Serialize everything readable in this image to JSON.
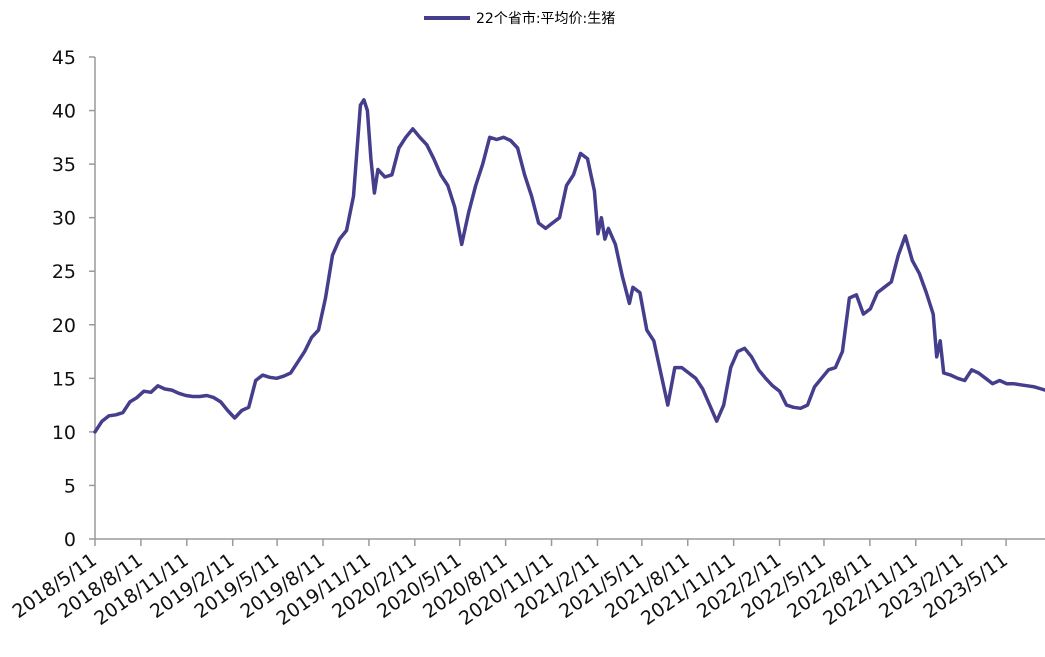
{
  "chart_data": {
    "type": "line",
    "title": "",
    "xlabel": "",
    "ylabel": "",
    "ylim": [
      0,
      45
    ],
    "y_ticks": [
      0,
      5,
      10,
      15,
      20,
      25,
      30,
      35,
      40,
      45
    ],
    "x_tick_labels": [
      "2018/5/11",
      "2018/8/11",
      "2018/11/11",
      "2019/2/11",
      "2019/5/11",
      "2019/8/11",
      "2019/11/11",
      "2020/2/11",
      "2020/5/11",
      "2020/8/11",
      "2020/11/11",
      "2021/2/11",
      "2021/5/11",
      "2021/8/11",
      "2021/11/11",
      "2022/2/11",
      "2022/5/11",
      "2022/8/11",
      "2022/11/11",
      "2023/2/11",
      "2023/5/11"
    ],
    "x_range": [
      "2018/5/11",
      "2023/7/28"
    ],
    "legend": {
      "position": "top-center"
    },
    "grid": false,
    "series": [
      {
        "name": "22个省市:平均价:生猪",
        "color": "#453e8c",
        "points": [
          [
            "2018/5/11",
            10.0
          ],
          [
            "2018/5/25",
            11.0
          ],
          [
            "2018/6/8",
            11.5
          ],
          [
            "2018/6/22",
            11.6
          ],
          [
            "2018/7/6",
            11.8
          ],
          [
            "2018/7/20",
            12.8
          ],
          [
            "2018/8/3",
            13.2
          ],
          [
            "2018/8/17",
            13.8
          ],
          [
            "2018/8/31",
            13.7
          ],
          [
            "2018/9/14",
            14.3
          ],
          [
            "2018/9/28",
            14.0
          ],
          [
            "2018/10/12",
            13.9
          ],
          [
            "2018/10/26",
            13.6
          ],
          [
            "2018/11/9",
            13.4
          ],
          [
            "2018/11/23",
            13.3
          ],
          [
            "2018/12/7",
            13.3
          ],
          [
            "2018/12/21",
            13.4
          ],
          [
            "2019/1/4",
            13.2
          ],
          [
            "2019/1/18",
            12.8
          ],
          [
            "2019/2/1",
            12.0
          ],
          [
            "2019/2/15",
            11.3
          ],
          [
            "2019/3/1",
            12.0
          ],
          [
            "2019/3/15",
            12.3
          ],
          [
            "2019/3/29",
            14.8
          ],
          [
            "2019/4/12",
            15.3
          ],
          [
            "2019/4/26",
            15.1
          ],
          [
            "2019/5/10",
            15.0
          ],
          [
            "2019/5/24",
            15.2
          ],
          [
            "2019/6/7",
            15.5
          ],
          [
            "2019/6/21",
            16.5
          ],
          [
            "2019/7/5",
            17.5
          ],
          [
            "2019/7/19",
            18.8
          ],
          [
            "2019/8/2",
            19.5
          ],
          [
            "2019/8/16",
            22.5
          ],
          [
            "2019/8/30",
            26.5
          ],
          [
            "2019/9/13",
            28.0
          ],
          [
            "2019/9/27",
            28.8
          ],
          [
            "2019/10/11",
            32.0
          ],
          [
            "2019/10/25",
            40.5
          ],
          [
            "2019/11/1",
            41.0
          ],
          [
            "2019/11/8",
            40.0
          ],
          [
            "2019/11/15",
            35.5
          ],
          [
            "2019/11/22",
            32.3
          ],
          [
            "2019/11/29",
            34.5
          ],
          [
            "2019/12/13",
            33.8
          ],
          [
            "2019/12/27",
            34.0
          ],
          [
            "2020/1/10",
            36.5
          ],
          [
            "2020/1/24",
            37.5
          ],
          [
            "2020/2/7",
            38.3
          ],
          [
            "2020/2/21",
            37.5
          ],
          [
            "2020/3/6",
            36.8
          ],
          [
            "2020/3/20",
            35.5
          ],
          [
            "2020/4/3",
            34.0
          ],
          [
            "2020/4/17",
            33.0
          ],
          [
            "2020/5/1",
            31.0
          ],
          [
            "2020/5/15",
            27.5
          ],
          [
            "2020/5/29",
            30.5
          ],
          [
            "2020/6/12",
            33.0
          ],
          [
            "2020/6/26",
            35.0
          ],
          [
            "2020/7/10",
            37.5
          ],
          [
            "2020/7/24",
            37.3
          ],
          [
            "2020/8/7",
            37.5
          ],
          [
            "2020/8/21",
            37.2
          ],
          [
            "2020/9/4",
            36.5
          ],
          [
            "2020/9/18",
            34.0
          ],
          [
            "2020/10/2",
            32.0
          ],
          [
            "2020/10/16",
            29.5
          ],
          [
            "2020/10/30",
            29.0
          ],
          [
            "2020/11/13",
            29.5
          ],
          [
            "2020/11/27",
            30.0
          ],
          [
            "2020/12/11",
            33.0
          ],
          [
            "2020/12/25",
            34.0
          ],
          [
            "2021/1/8",
            36.0
          ],
          [
            "2021/1/22",
            35.5
          ],
          [
            "2021/2/5",
            32.5
          ],
          [
            "2021/2/12",
            28.5
          ],
          [
            "2021/2/19",
            30.0
          ],
          [
            "2021/2/26",
            28.0
          ],
          [
            "2021/3/5",
            29.0
          ],
          [
            "2021/3/19",
            27.5
          ],
          [
            "2021/4/2",
            24.5
          ],
          [
            "2021/4/16",
            22.0
          ],
          [
            "2021/4/23",
            23.5
          ],
          [
            "2021/5/7",
            23.0
          ],
          [
            "2021/5/21",
            19.5
          ],
          [
            "2021/6/4",
            18.5
          ],
          [
            "2021/6/18",
            15.5
          ],
          [
            "2021/7/2",
            12.5
          ],
          [
            "2021/7/16",
            16.0
          ],
          [
            "2021/7/30",
            16.0
          ],
          [
            "2021/8/13",
            15.5
          ],
          [
            "2021/8/27",
            15.0
          ],
          [
            "2021/9/10",
            14.0
          ],
          [
            "2021/9/24",
            12.5
          ],
          [
            "2021/10/8",
            11.0
          ],
          [
            "2021/10/22",
            12.5
          ],
          [
            "2021/11/5",
            16.0
          ],
          [
            "2021/11/19",
            17.5
          ],
          [
            "2021/12/3",
            17.8
          ],
          [
            "2021/12/17",
            17.0
          ],
          [
            "2021/12/31",
            15.8
          ],
          [
            "2022/1/14",
            15.0
          ],
          [
            "2022/1/28",
            14.3
          ],
          [
            "2022/2/11",
            13.8
          ],
          [
            "2022/2/25",
            12.5
          ],
          [
            "2022/3/11",
            12.3
          ],
          [
            "2022/3/25",
            12.2
          ],
          [
            "2022/4/8",
            12.5
          ],
          [
            "2022/4/22",
            14.2
          ],
          [
            "2022/5/6",
            15.0
          ],
          [
            "2022/5/20",
            15.8
          ],
          [
            "2022/6/3",
            16.0
          ],
          [
            "2022/6/17",
            17.5
          ],
          [
            "2022/7/1",
            22.5
          ],
          [
            "2022/7/15",
            22.8
          ],
          [
            "2022/7/29",
            21.0
          ],
          [
            "2022/8/12",
            21.5
          ],
          [
            "2022/8/26",
            23.0
          ],
          [
            "2022/9/9",
            23.5
          ],
          [
            "2022/9/23",
            24.0
          ],
          [
            "2022/10/7",
            26.5
          ],
          [
            "2022/10/21",
            28.3
          ],
          [
            "2022/11/4",
            26.0
          ],
          [
            "2022/11/18",
            24.8
          ],
          [
            "2022/12/2",
            23.0
          ],
          [
            "2022/12/16",
            21.0
          ],
          [
            "2022/12/23",
            17.0
          ],
          [
            "2022/12/30",
            18.5
          ],
          [
            "2023/1/6",
            15.5
          ],
          [
            "2023/1/20",
            15.3
          ],
          [
            "2023/2/3",
            15.0
          ],
          [
            "2023/2/17",
            14.8
          ],
          [
            "2023/3/3",
            15.8
          ],
          [
            "2023/3/17",
            15.5
          ],
          [
            "2023/3/31",
            15.0
          ],
          [
            "2023/4/14",
            14.5
          ],
          [
            "2023/4/28",
            14.8
          ],
          [
            "2023/5/12",
            14.5
          ],
          [
            "2023/5/26",
            14.5
          ],
          [
            "2023/6/9",
            14.4
          ],
          [
            "2023/6/23",
            14.3
          ],
          [
            "2023/7/7",
            14.2
          ],
          [
            "2023/7/21",
            14.0
          ],
          [
            "2023/7/28",
            13.9
          ]
        ]
      }
    ]
  }
}
